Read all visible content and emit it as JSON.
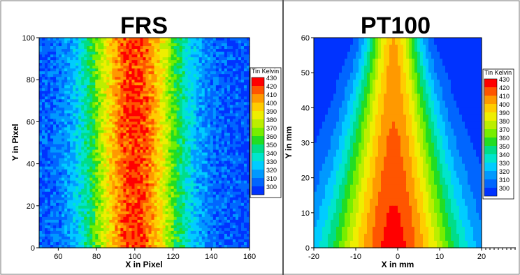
{
  "chart_data": [
    {
      "type": "heatmap",
      "title": "FRS",
      "xlabel": "X in Pixel",
      "ylabel": "Y in Pixel",
      "xlim": [
        50,
        160
      ],
      "ylim": [
        0,
        100
      ],
      "xticks": [
        "60",
        "80",
        "100",
        "120",
        "140",
        "160"
      ],
      "yticks": [
        "0",
        "20",
        "40",
        "60",
        "80",
        "100"
      ],
      "noisy": true,
      "profile": {
        "center_x": 100,
        "peak": 425,
        "base": 305,
        "half_width": 22
      },
      "legend": {
        "title": "Tin Kelvin",
        "levels": [
          "430",
          "420",
          "410",
          "400",
          "390",
          "380",
          "370",
          "360",
          "350",
          "340",
          "330",
          "320",
          "310",
          "300"
        ],
        "placement": "right"
      }
    },
    {
      "type": "heatmap",
      "title": "PT100",
      "xlabel": "X in mm",
      "ylabel": "Y in mm",
      "xlim": [
        -20,
        20
      ],
      "ylim": [
        0,
        60
      ],
      "xticks": [
        "-20",
        "-10",
        "0",
        "10",
        "20"
      ],
      "yticks": [
        "0",
        "10",
        "20",
        "30",
        "40",
        "50",
        "60"
      ],
      "noisy": false,
      "profile": {
        "center_x": -1,
        "peak": 430,
        "base": 300,
        "half_width": 9
      },
      "legend": {
        "title": "Tin Kelvin",
        "levels": [
          "430",
          "420",
          "410",
          "400",
          "390",
          "380",
          "370",
          "360",
          "350",
          "340",
          "330",
          "320",
          "310",
          "300"
        ],
        "placement": "right"
      }
    }
  ],
  "colors": {
    "colormap": [
      "#0033ff",
      "#0066ff",
      "#0099ff",
      "#00ccff",
      "#00e5cc",
      "#00dd88",
      "#22dd22",
      "#77ee00",
      "#bbee00",
      "#eeee00",
      "#ffcc00",
      "#ff9900",
      "#ff5500",
      "#ff0000"
    ],
    "divider": "#555555"
  }
}
